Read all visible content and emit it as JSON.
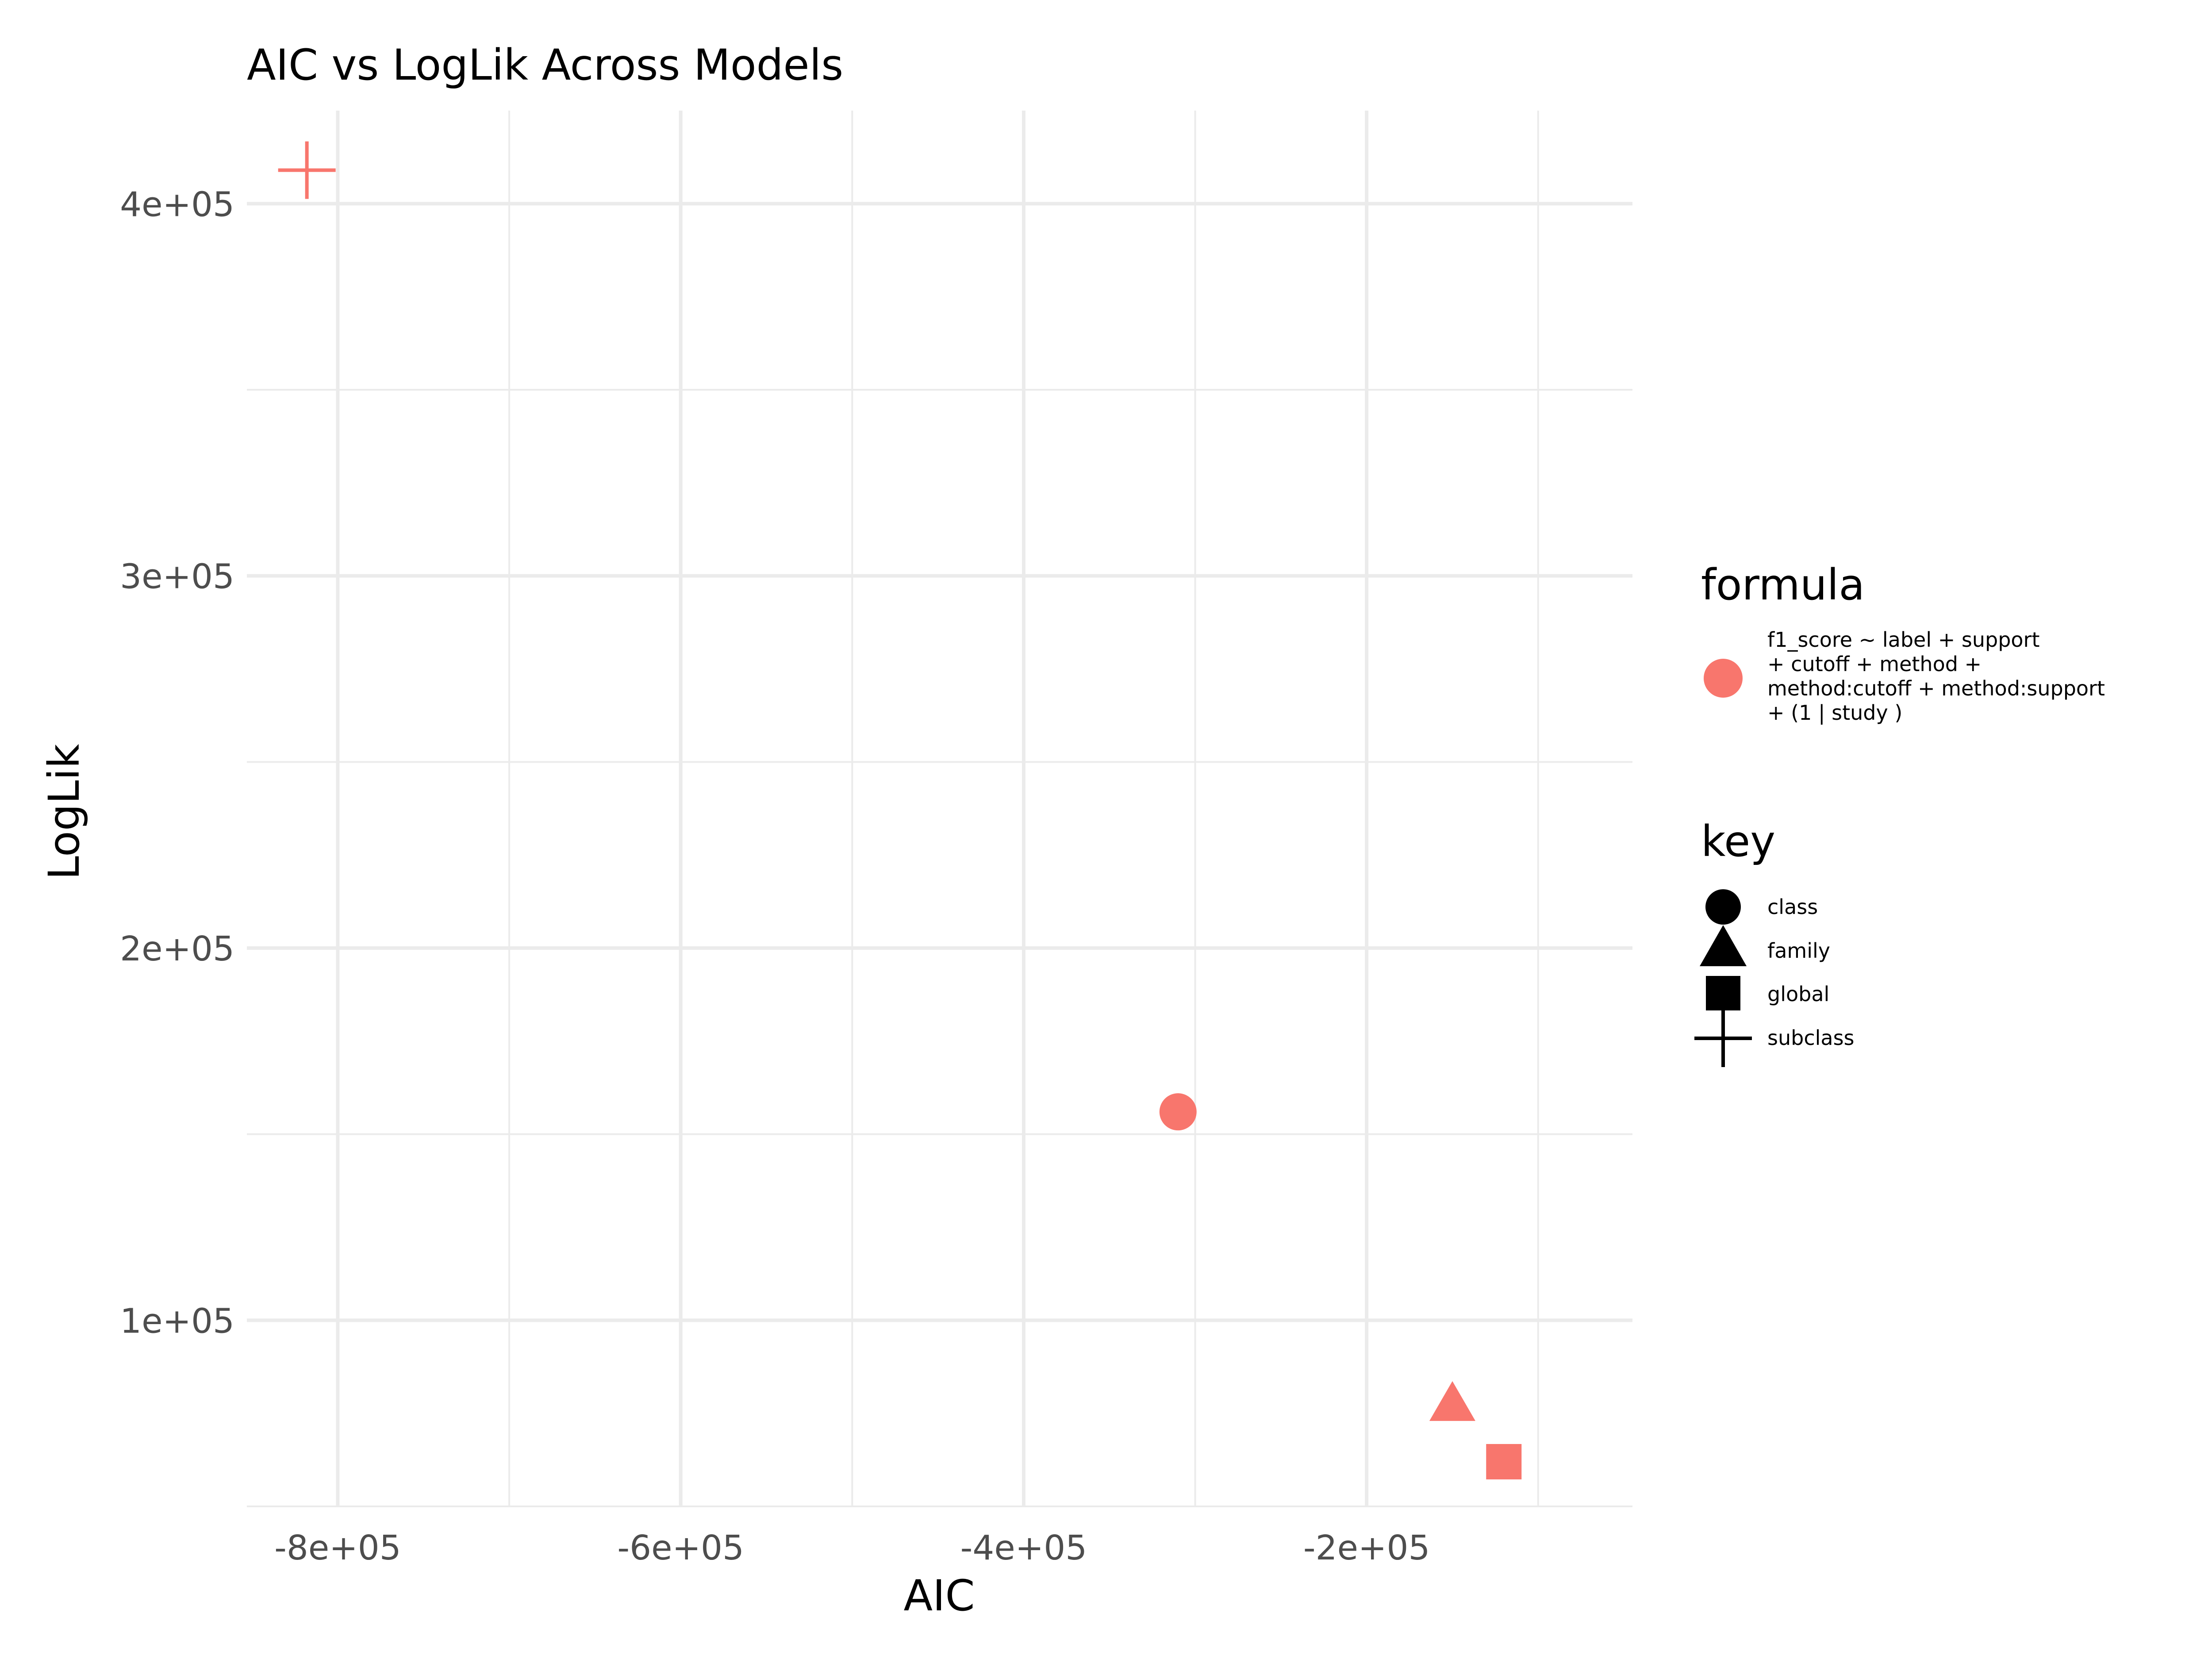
{
  "chart_data": {
    "type": "scatter",
    "title": "AIC vs LogLik Across Models",
    "xlabel": "AIC",
    "ylabel": "LogLik",
    "xlim": [
      -853000,
      -45000
    ],
    "ylim": [
      50000,
      425000
    ],
    "x_ticks": [
      {
        "value": -800000,
        "label": "-8e+05"
      },
      {
        "value": -600000,
        "label": "-6e+05"
      },
      {
        "value": -400000,
        "label": "-4e+05"
      },
      {
        "value": -200000,
        "label": "-2e+05"
      }
    ],
    "x_minor": [
      -700000,
      -500000,
      -300000,
      -100000
    ],
    "y_ticks": [
      {
        "value": 100000,
        "label": "1e+05"
      },
      {
        "value": 200000,
        "label": "2e+05"
      },
      {
        "value": 300000,
        "label": "3e+05"
      },
      {
        "value": 400000,
        "label": "4e+05"
      }
    ],
    "y_minor": [
      50000,
      150000,
      250000,
      350000
    ],
    "grid": true,
    "color": "#F8766D",
    "points": [
      {
        "x": -818000,
        "y": 409000,
        "key": "subclass"
      },
      {
        "x": -310000,
        "y": 156000,
        "key": "class"
      },
      {
        "x": -150000,
        "y": 77000,
        "key": "family"
      },
      {
        "x": -120000,
        "y": 62000,
        "key": "global"
      }
    ],
    "legend": {
      "position": "right",
      "formula": {
        "title": "formula",
        "entries": [
          {
            "lines": [
              "f1_score ~ label + support",
              "+ cutoff + method +",
              "method:cutoff + method:support",
              "+ (1 | study )"
            ],
            "shape": "circle",
            "color": "#F8766D"
          }
        ]
      },
      "key": {
        "title": "key",
        "entries": [
          {
            "label": "class",
            "shape": "circle"
          },
          {
            "label": "family",
            "shape": "triangle"
          },
          {
            "label": "global",
            "shape": "square"
          },
          {
            "label": "subclass",
            "shape": "plus"
          }
        ]
      }
    }
  }
}
